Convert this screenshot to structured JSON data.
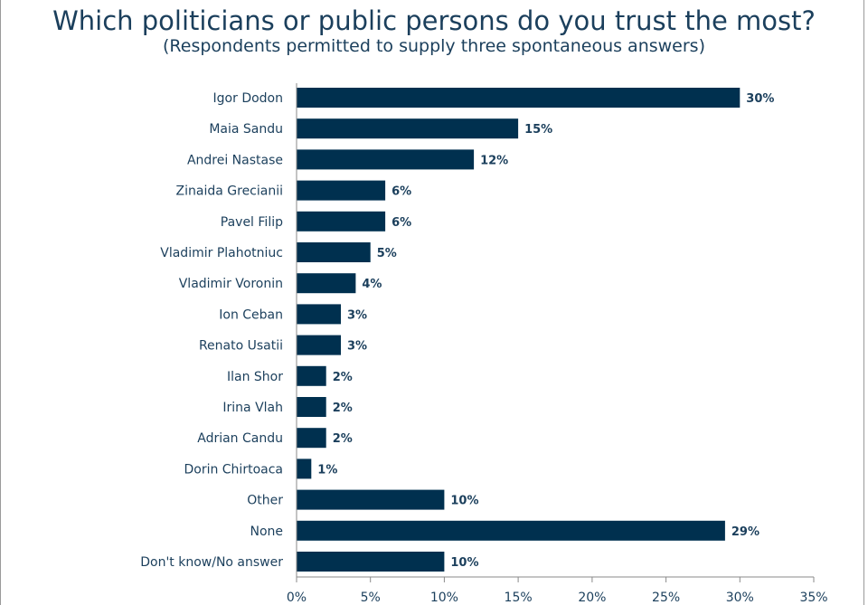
{
  "title": "Which politicians or public persons do you trust the most?",
  "subtitle": "(Respondents permitted to supply three spontaneous answers)",
  "colors": {
    "bar": "#00304f",
    "text": "#1b3f5c",
    "axis": "#8a8a8a"
  },
  "chart_data": {
    "type": "bar",
    "orientation": "horizontal",
    "title": "Which politicians or public persons do you trust the most?",
    "subtitle": "(Respondents permitted to supply three spontaneous answers)",
    "categories": [
      "Igor Dodon",
      "Maia Sandu",
      "Andrei Nastase",
      "Zinaida Grecianii",
      "Pavel Filip",
      "Vladimir Plahotniuc",
      "Vladimir Voronin",
      "Ion Ceban",
      "Renato Usatii",
      "Ilan Shor",
      "Irina Vlah",
      "Adrian Candu",
      "Dorin Chirtoaca",
      "Other",
      "None",
      "Don't know/No answer"
    ],
    "values": [
      30,
      15,
      12,
      6,
      6,
      5,
      4,
      3,
      3,
      2,
      2,
      2,
      1,
      10,
      29,
      10
    ],
    "value_labels": [
      "30%",
      "15%",
      "12%",
      "6%",
      "6%",
      "5%",
      "4%",
      "3%",
      "3%",
      "2%",
      "2%",
      "2%",
      "1%",
      "10%",
      "29%",
      "10%"
    ],
    "xlim": [
      0,
      35
    ],
    "xticks": [
      0,
      5,
      10,
      15,
      20,
      25,
      30,
      35
    ],
    "xtick_labels": [
      "0%",
      "5%",
      "10%",
      "15%",
      "20%",
      "25%",
      "30%",
      "35%"
    ],
    "grid": false,
    "legend": "none"
  }
}
